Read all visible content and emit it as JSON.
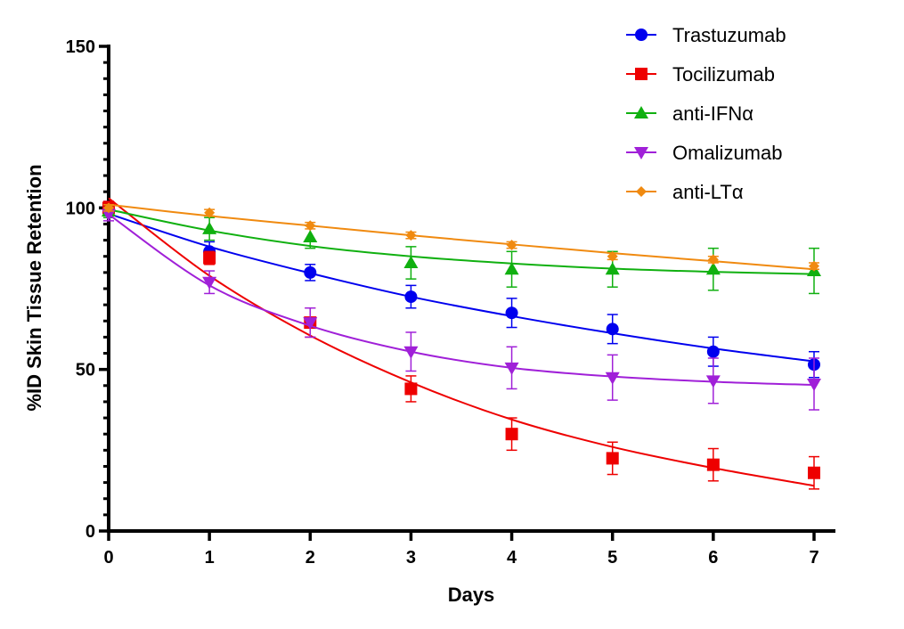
{
  "chart_data": {
    "type": "line",
    "xlabel": "Days",
    "ylabel": "%ID Skin Tissue Retention",
    "xlim": [
      0,
      7
    ],
    "ylim": [
      0,
      150
    ],
    "x_ticks": [
      "0",
      "1",
      "2",
      "3",
      "4",
      "5",
      "6",
      "7"
    ],
    "y_ticks": [
      "0",
      "50",
      "100",
      "150"
    ],
    "grid": false,
    "legend_position": "top-right",
    "x": [
      0,
      1,
      2,
      3,
      4,
      5,
      6,
      7
    ],
    "series": [
      {
        "name": "Trastuzumab",
        "color": "#0000ee",
        "marker": "circle",
        "values": [
          100,
          86.5,
          80,
          72.5,
          67.5,
          62.5,
          55.5,
          51.5
        ],
        "errors": [
          2,
          3,
          2.5,
          3.5,
          4.5,
          4.5,
          4.5,
          4
        ],
        "fit": [
          98.2,
          88,
          79.8,
          72.5,
          66.5,
          61.2,
          56.5,
          52.5
        ]
      },
      {
        "name": "Tocilizumab",
        "color": "#ee0000",
        "marker": "square",
        "values": [
          100,
          84.5,
          64.5,
          44,
          30,
          22.5,
          20.5,
          18
        ],
        "errors": [
          2,
          2,
          4.5,
          4,
          5,
          5,
          5,
          5
        ],
        "fit": [
          103,
          79,
          60.5,
          46,
          34.5,
          26,
          19.5,
          14
        ]
      },
      {
        "name": "anti-IFNα",
        "color": "#10b010",
        "marker": "triangle-up",
        "values": [
          99,
          93.5,
          91,
          83,
          81,
          81,
          81,
          80.5
        ],
        "errors": [
          2,
          3.5,
          3.5,
          5,
          5.5,
          5.5,
          6.5,
          7
        ],
        "fit": [
          99.5,
          93,
          88.2,
          85,
          82.8,
          81.2,
          80.2,
          79.5
        ]
      },
      {
        "name": "Omalizumab",
        "color": "#a020d8",
        "marker": "triangle-down",
        "values": [
          98,
          77,
          64.5,
          55.5,
          50.5,
          47.5,
          46.5,
          45.5
        ],
        "errors": [
          2,
          3.5,
          4.5,
          6,
          6.5,
          7,
          7,
          8
        ],
        "fit": [
          98,
          76,
          63.5,
          55.5,
          50.5,
          47.8,
          46.2,
          45.2
        ]
      },
      {
        "name": "anti-LTα",
        "color": "#f08a10",
        "marker": "diamond",
        "values": [
          100,
          98.5,
          94.5,
          91.5,
          88.5,
          85,
          84,
          82
        ],
        "errors": [
          1,
          1,
          1,
          1,
          1,
          1,
          1,
          1
        ],
        "fit": [
          101,
          97.5,
          94.5,
          91.5,
          88.7,
          86,
          83.5,
          81
        ]
      }
    ]
  }
}
